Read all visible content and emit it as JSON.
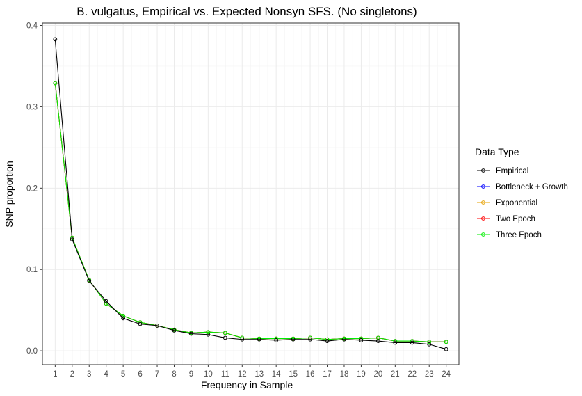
{
  "chart_data": {
    "type": "line",
    "title": "B. vulgatus, Empirical vs. Expected Nonsyn SFS. (No singletons)",
    "xlabel": "Frequency in Sample",
    "ylabel": "SNP proportion",
    "x": [
      1,
      2,
      3,
      4,
      5,
      6,
      7,
      8,
      9,
      10,
      11,
      12,
      13,
      14,
      15,
      16,
      17,
      18,
      19,
      20,
      21,
      22,
      23,
      24
    ],
    "xlim": [
      0.25,
      24.75
    ],
    "ylim": [
      -0.017,
      0.403
    ],
    "yticks": [
      0.0,
      0.1,
      0.2,
      0.3,
      0.4
    ],
    "yticklabels": [
      "0.0",
      "0.1",
      "0.2",
      "0.3",
      "0.4"
    ],
    "grid": true,
    "legend": {
      "title": "Data Type",
      "position": "right"
    },
    "series": [
      {
        "name": "Empirical",
        "color": "#000000",
        "values": [
          0.383,
          0.137,
          0.086,
          0.061,
          0.04,
          0.033,
          0.031,
          0.025,
          0.021,
          0.02,
          0.016,
          0.014,
          0.014,
          0.013,
          0.014,
          0.014,
          0.012,
          0.014,
          0.013,
          0.012,
          0.01,
          0.01,
          0.008,
          0.002
        ]
      },
      {
        "name": "Bottleneck + Growth",
        "color": "#0000ff",
        "values": [
          0.329,
          0.139,
          0.087,
          0.058,
          0.043,
          0.035,
          0.031,
          0.026,
          0.022,
          0.023,
          0.022,
          0.016,
          0.015,
          0.015,
          0.015,
          0.016,
          0.014,
          0.015,
          0.015,
          0.016,
          0.012,
          0.012,
          0.011,
          0.011
        ]
      },
      {
        "name": "Exponential",
        "color": "#e6a000",
        "values": [
          0.329,
          0.139,
          0.087,
          0.058,
          0.043,
          0.035,
          0.031,
          0.026,
          0.022,
          0.023,
          0.022,
          0.016,
          0.015,
          0.015,
          0.015,
          0.016,
          0.014,
          0.015,
          0.015,
          0.016,
          0.012,
          0.012,
          0.011,
          0.011
        ]
      },
      {
        "name": "Two Epoch",
        "color": "#ff0000",
        "values": [
          0.329,
          0.139,
          0.087,
          0.058,
          0.043,
          0.035,
          0.031,
          0.026,
          0.022,
          0.023,
          0.022,
          0.016,
          0.015,
          0.015,
          0.015,
          0.016,
          0.014,
          0.015,
          0.015,
          0.016,
          0.012,
          0.012,
          0.011,
          0.011
        ]
      },
      {
        "name": "Three Epoch",
        "color": "#00ee00",
        "values": [
          0.329,
          0.139,
          0.087,
          0.058,
          0.043,
          0.035,
          0.031,
          0.026,
          0.022,
          0.023,
          0.022,
          0.016,
          0.015,
          0.015,
          0.015,
          0.016,
          0.014,
          0.015,
          0.015,
          0.016,
          0.012,
          0.012,
          0.011,
          0.011
        ]
      }
    ]
  }
}
